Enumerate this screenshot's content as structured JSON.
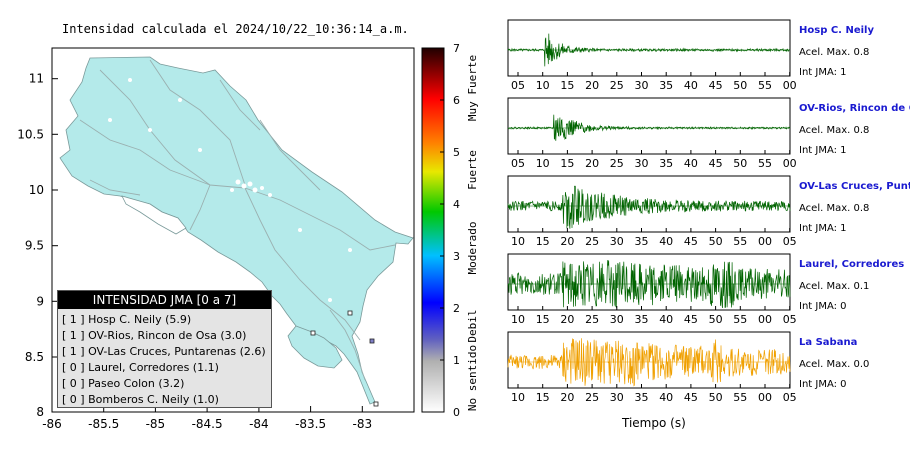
{
  "title": "Intensidad calculada el 2024/10/22_10:36:14_a.m.",
  "map": {
    "xticks": [
      "-86",
      "-85.5",
      "-85",
      "-84.5",
      "-84",
      "-83.5",
      "-83"
    ],
    "yticks": [
      "11",
      "10.5",
      "10",
      "9.5",
      "9",
      "8.5",
      "8"
    ],
    "xlim": [
      -86,
      -82.5
    ],
    "ylim": [
      8,
      11.3
    ],
    "land_color": "#b4eaea"
  },
  "legend": {
    "header": "INTENSIDAD JMA [0 a 7]",
    "items": [
      {
        "level": "[ 1 ]",
        "name": "Hosp C. Neily (5.9)"
      },
      {
        "level": "[ 1 ]",
        "name": "OV-Rios, Rincon de Osa (3.0)"
      },
      {
        "level": "[ 1 ]",
        "name": "OV-Las Cruces, Puntarenas (2.6)"
      },
      {
        "level": "[ 0 ]",
        "name": "Laurel, Corredores (1.1)"
      },
      {
        "level": "[ 0 ]",
        "name": "Paseo Colon (3.2)"
      },
      {
        "level": "[ 0 ]",
        "name": "Bomberos C. Neily (1.0)"
      }
    ]
  },
  "colorbar": {
    "ticks": [
      "0",
      "1",
      "2",
      "3",
      "4",
      "5",
      "6",
      "7"
    ],
    "categories": [
      "No sentido",
      "Debil",
      "Moderado",
      "Fuerte",
      "Muy Fuerte"
    ]
  },
  "chart_data": {
    "type": "line",
    "xlabel": "Tiempo (s)",
    "series": [
      {
        "name": "Hosp C. Neily",
        "accel_label": "Acel. Max. 0.8",
        "int_label": "Int JMA: 1",
        "color": "#006400",
        "ticks": [
          "05",
          "10",
          "15",
          "20",
          "25",
          "30",
          "35",
          "40",
          "45",
          "50",
          "55",
          "00"
        ],
        "onset": 8,
        "decay": 3,
        "amp": 0.9,
        "noise": 0.05,
        "late": 0
      },
      {
        "name": "OV-Rios, Rincon de Os",
        "accel_label": "Acel. Max. 0.8",
        "int_label": "Int JMA: 1",
        "color": "#006400",
        "ticks": [
          "05",
          "10",
          "15",
          "20",
          "25",
          "30",
          "35",
          "40",
          "45",
          "50",
          "55",
          "00"
        ],
        "onset": 10,
        "decay": 4,
        "amp": 0.9,
        "noise": 0.04,
        "late": 0
      },
      {
        "name": "OV-Las Cruces, Puntar",
        "accel_label": "Acel. Max. 0.8",
        "int_label": "Int JMA: 1",
        "color": "#006400",
        "ticks": [
          "10",
          "15",
          "20",
          "25",
          "30",
          "35",
          "40",
          "45",
          "50",
          "55",
          "00",
          "05"
        ],
        "onset": 12,
        "decay": 10,
        "amp": 0.9,
        "noise": 0.2,
        "late": 0
      },
      {
        "name": "Laurel, Corredores",
        "accel_label": "Acel. Max. 0.1",
        "int_label": "Int JMA: 0",
        "color": "#006400",
        "ticks": [
          "10",
          "15",
          "20",
          "25",
          "30",
          "35",
          "40",
          "45",
          "50",
          "55",
          "00",
          "05"
        ],
        "onset": 12,
        "decay": 28,
        "amp": 0.9,
        "noise": 0.45,
        "late": 1
      },
      {
        "name": "La Sabana",
        "accel_label": "Acel. Max. 0.0",
        "int_label": "Int JMA: 0",
        "color": "#f0a000",
        "ticks": [
          "10",
          "15",
          "20",
          "25",
          "30",
          "35",
          "40",
          "45",
          "50",
          "55",
          "00",
          "05"
        ],
        "onset": 12,
        "decay": 40,
        "amp": 0.8,
        "noise": 0.3,
        "late": 2
      }
    ]
  }
}
